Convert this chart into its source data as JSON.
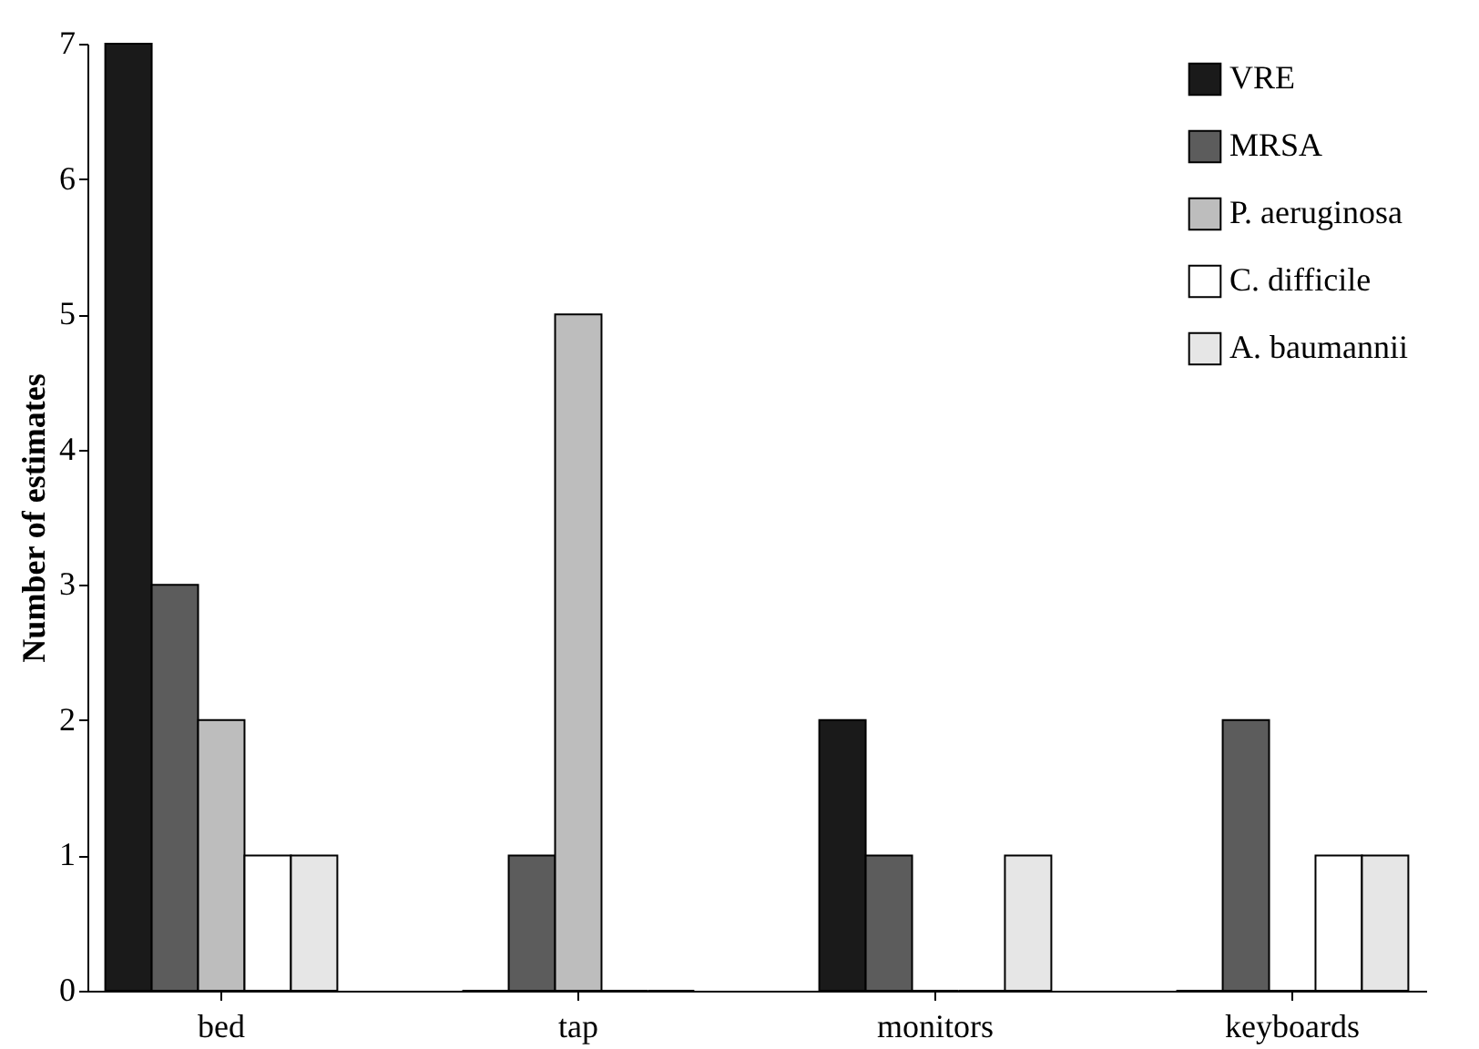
{
  "chart_data": {
    "type": "bar",
    "ylabel": "Number of estimates",
    "categories": [
      "bed",
      "tap",
      "monitors",
      "keyboards"
    ],
    "series": [
      {
        "name": "VRE",
        "color": "#1a1a1a",
        "values": [
          7,
          0,
          2,
          0
        ]
      },
      {
        "name": "MRSA",
        "color": "#5c5c5c",
        "values": [
          3,
          1,
          1,
          2
        ]
      },
      {
        "name": "P. aeruginosa",
        "color": "#bdbdbd",
        "values": [
          2,
          5,
          0,
          0
        ]
      },
      {
        "name": "C. difficile",
        "color": "#ffffff",
        "values": [
          1,
          0,
          0,
          1
        ]
      },
      {
        "name": "A. baumannii",
        "color": "#e6e6e6",
        "values": [
          1,
          0,
          1,
          1
        ]
      }
    ],
    "ylim": [
      0,
      7
    ],
    "yticks": [
      0,
      1,
      2,
      3,
      4,
      5,
      6,
      7
    ],
    "grid": false,
    "legend": "top right"
  }
}
